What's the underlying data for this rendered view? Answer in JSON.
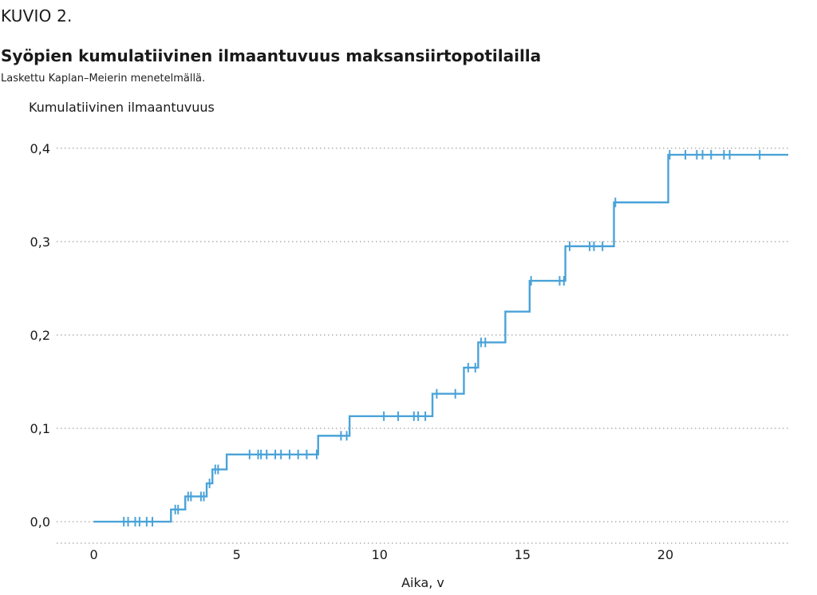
{
  "figure_label": "KUVIO 2.",
  "colors": {
    "line": "#4aa3d8",
    "grid": "#8a8a8a",
    "text": "#1a1a1a"
  },
  "chart_data": {
    "type": "line",
    "step": true,
    "title": "Syöpien kumulatiivinen ilmaantuvuus maksansiirtopotilailla",
    "subtitle": "Laskettu Kaplan–Meierin menetelmällä.",
    "xlabel": "Aika, v",
    "ylabel": "Kumulatiivinen ilmaantuvuus",
    "xlim": [
      -1.3,
      24.3
    ],
    "ylim": [
      -0.023,
      0.405
    ],
    "x_ticks": [
      0,
      5,
      10,
      15,
      20
    ],
    "x_tick_labels": [
      "0",
      "5",
      "10",
      "15",
      "20"
    ],
    "y_ticks": [
      0.0,
      0.1,
      0.2,
      0.3,
      0.4
    ],
    "y_tick_labels": [
      "0,0",
      "0,1",
      "0,2",
      "0,3",
      "0,4"
    ],
    "grid": "horizontal dotted",
    "series": [
      {
        "steps": [
          [
            0,
            0.0
          ],
          [
            2.7,
            0.013
          ],
          [
            3.2,
            0.027
          ],
          [
            3.95,
            0.041
          ],
          [
            4.15,
            0.056
          ],
          [
            4.65,
            0.072
          ],
          [
            7.85,
            0.092
          ],
          [
            8.95,
            0.113
          ],
          [
            11.85,
            0.137
          ],
          [
            12.95,
            0.165
          ],
          [
            13.45,
            0.192
          ],
          [
            14.4,
            0.225
          ],
          [
            15.25,
            0.258
          ],
          [
            16.5,
            0.295
          ],
          [
            18.2,
            0.342
          ],
          [
            20.1,
            0.393
          ],
          [
            24.3,
            0.393
          ]
        ],
        "censor_marks": [
          1.05,
          1.2,
          1.45,
          1.6,
          1.85,
          2.05,
          2.85,
          2.95,
          3.3,
          3.4,
          3.75,
          3.85,
          4.05,
          4.25,
          4.35,
          5.45,
          5.75,
          5.85,
          6.05,
          6.35,
          6.55,
          6.85,
          7.15,
          7.45,
          7.8,
          8.65,
          8.85,
          10.15,
          10.65,
          11.2,
          11.35,
          11.6,
          12.0,
          12.65,
          13.1,
          13.35,
          13.55,
          13.7,
          15.3,
          16.3,
          16.45,
          16.65,
          17.35,
          17.5,
          17.8,
          18.25,
          20.15,
          20.7,
          21.1,
          21.3,
          21.6,
          22.05,
          22.25,
          23.3
        ]
      }
    ]
  }
}
